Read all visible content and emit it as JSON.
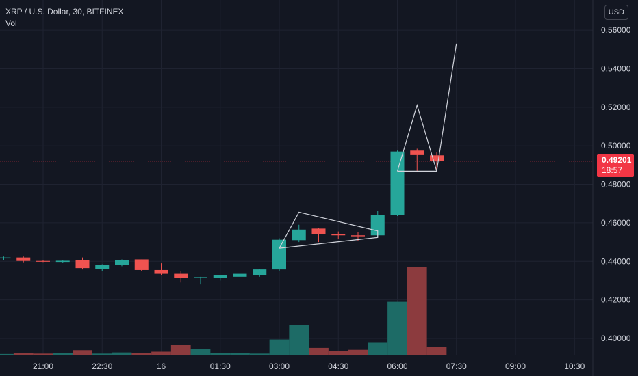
{
  "header": {
    "symbol_title": "XRP / U.S. Dollar, 30, BITFINEX",
    "volume_label": "Vol",
    "currency_button": "USD"
  },
  "price_tag": {
    "price": "0.49201",
    "countdown": "18:57"
  },
  "colors": {
    "background": "#131722",
    "grid": "#1f2331",
    "up": "#26a69a",
    "down": "#ef5350",
    "volume_up": "#1d6b66",
    "volume_down": "#8c3b3e",
    "drawing": "#d1d4dc",
    "last_price_line": "#f23645",
    "text": "#d1d4dc"
  },
  "chart_data": {
    "type": "candlestick",
    "title": "XRP / U.S. Dollar, 30, BITFINEX",
    "exchange": "BITFINEX",
    "interval": "30",
    "ylim": [
      0.39,
      0.567
    ],
    "y_ticks": [
      "0.40000",
      "0.42000",
      "0.44000",
      "0.46000",
      "0.48000",
      "0.50000",
      "0.52000",
      "0.54000",
      "0.56000"
    ],
    "x_ticks": [
      {
        "label": "21:00",
        "index": 2
      },
      {
        "label": "22:30",
        "index": 5
      },
      {
        "label": "16",
        "index": 8
      },
      {
        "label": "01:30",
        "index": 11
      },
      {
        "label": "03:00",
        "index": 14
      },
      {
        "label": "04:30",
        "index": 17
      },
      {
        "label": "06:00",
        "index": 20
      },
      {
        "label": "07:30",
        "index": 23
      },
      {
        "label": "09:00",
        "index": 26
      },
      {
        "label": "10:30",
        "index": 29
      }
    ],
    "last_price": 0.49201,
    "candles": [
      {
        "o": 0.4415,
        "h": 0.4425,
        "l": 0.4408,
        "c": 0.442,
        "v": 2
      },
      {
        "o": 0.442,
        "h": 0.4425,
        "l": 0.4395,
        "c": 0.4402,
        "v": 4
      },
      {
        "o": 0.4402,
        "h": 0.4408,
        "l": 0.4396,
        "c": 0.4398,
        "v": 3
      },
      {
        "o": 0.4397,
        "h": 0.4405,
        "l": 0.4393,
        "c": 0.4403,
        "v": 4
      },
      {
        "o": 0.4405,
        "h": 0.442,
        "l": 0.4358,
        "c": 0.4365,
        "v": 12
      },
      {
        "o": 0.436,
        "h": 0.4385,
        "l": 0.435,
        "c": 0.438,
        "v": 3
      },
      {
        "o": 0.438,
        "h": 0.441,
        "l": 0.4375,
        "c": 0.4405,
        "v": 6
      },
      {
        "o": 0.441,
        "h": 0.441,
        "l": 0.435,
        "c": 0.4355,
        "v": 4
      },
      {
        "o": 0.4355,
        "h": 0.439,
        "l": 0.433,
        "c": 0.4335,
        "v": 8
      },
      {
        "o": 0.4335,
        "h": 0.435,
        "l": 0.429,
        "c": 0.4315,
        "v": 25
      },
      {
        "o": 0.4315,
        "h": 0.432,
        "l": 0.428,
        "c": 0.4318,
        "v": 15
      },
      {
        "o": 0.4315,
        "h": 0.433,
        "l": 0.43,
        "c": 0.433,
        "v": 5
      },
      {
        "o": 0.432,
        "h": 0.434,
        "l": 0.431,
        "c": 0.4335,
        "v": 4
      },
      {
        "o": 0.433,
        "h": 0.436,
        "l": 0.432,
        "c": 0.4358,
        "v": 3
      },
      {
        "o": 0.4358,
        "h": 0.452,
        "l": 0.435,
        "c": 0.4512,
        "v": 40
      },
      {
        "o": 0.451,
        "h": 0.459,
        "l": 0.45,
        "c": 0.4565,
        "v": 78
      },
      {
        "o": 0.457,
        "h": 0.4575,
        "l": 0.45,
        "c": 0.454,
        "v": 18
      },
      {
        "o": 0.454,
        "h": 0.4555,
        "l": 0.4515,
        "c": 0.4535,
        "v": 9
      },
      {
        "o": 0.4535,
        "h": 0.455,
        "l": 0.4505,
        "c": 0.453,
        "v": 13
      },
      {
        "o": 0.4535,
        "h": 0.466,
        "l": 0.4525,
        "c": 0.464,
        "v": 33
      },
      {
        "o": 0.464,
        "h": 0.4975,
        "l": 0.4635,
        "c": 0.497,
        "v": 138
      },
      {
        "o": 0.4975,
        "h": 0.4985,
        "l": 0.487,
        "c": 0.4955,
        "v": 230
      },
      {
        "o": 0.495,
        "h": 0.4965,
        "l": 0.487,
        "c": 0.492,
        "v": 21
      }
    ],
    "drawings": [
      {
        "name": "flag-pattern",
        "points": [
          [
            14,
            0.4468
          ],
          [
            15,
            0.4655
          ],
          [
            19,
            0.4558
          ],
          [
            19,
            0.4524
          ],
          [
            14,
            0.4468
          ]
        ]
      },
      {
        "name": "pennant-pattern",
        "points": [
          [
            20,
            0.4868
          ],
          [
            21,
            0.521
          ],
          [
            22,
            0.4868
          ],
          [
            20,
            0.4868
          ]
        ]
      },
      {
        "name": "projection-line",
        "points": [
          [
            22,
            0.487
          ],
          [
            23,
            0.553
          ]
        ]
      }
    ]
  }
}
